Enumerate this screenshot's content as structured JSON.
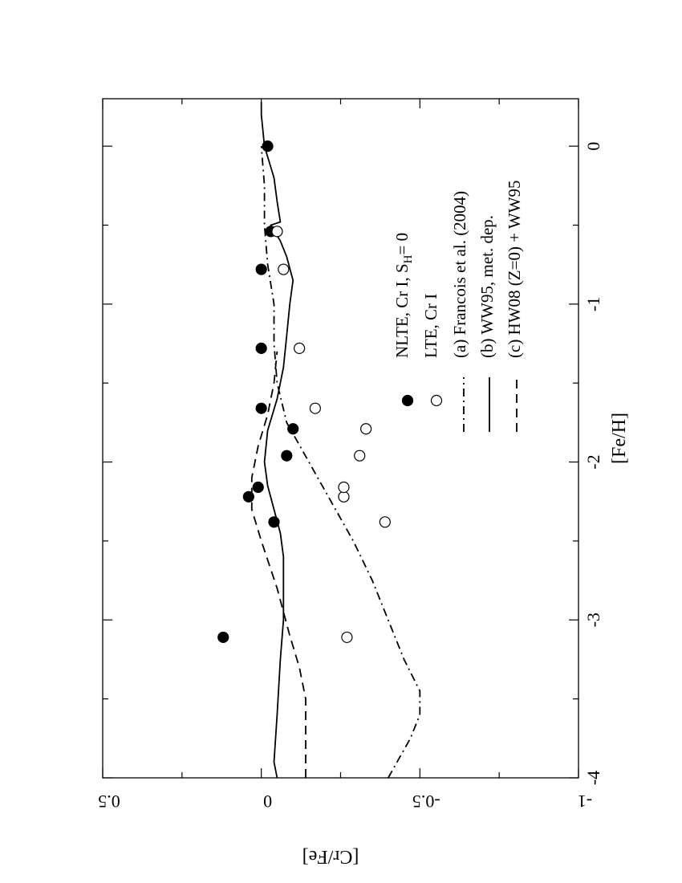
{
  "chart_data": {
    "type": "scatter",
    "orientation": "rotated-90-counterclockwise",
    "xlabel": "[Fe/H]",
    "ylabel": "[Cr/Fe]",
    "xlim": [
      -4,
      0.3
    ],
    "ylim": [
      -1,
      0.5
    ],
    "x_ticks": [
      {
        "value": -4,
        "label": "-4"
      },
      {
        "value": -3,
        "label": "-3"
      },
      {
        "value": -2,
        "label": "-2"
      },
      {
        "value": -1,
        "label": "-1"
      },
      {
        "value": 0,
        "label": "0"
      }
    ],
    "y_ticks": [
      {
        "value": 0.5,
        "label": "0.5"
      },
      {
        "value": 0,
        "label": "0"
      },
      {
        "value": -0.5,
        "label": "-0.5"
      },
      {
        "value": -1,
        "label": "-1"
      }
    ],
    "legend": {
      "placement": "lower-right",
      "entries": [
        {
          "text": "NLTE, Cr I, S",
          "sub": "H",
          "suffix": "= 0",
          "marker": "filled-circle"
        },
        {
          "text": "LTE, Cr I",
          "marker": "open-circle"
        },
        {
          "text": "(a) Francois et al. (2004)",
          "marker": "dash-dot-line"
        },
        {
          "text": "(b) WW95, met. dep.",
          "marker": "solid-line"
        },
        {
          "text": "(c) HW08 (Z=0) + WW95",
          "marker": "dashed-line"
        }
      ]
    },
    "series": [
      {
        "kind": "points",
        "style": "filled",
        "points": [
          {
            "x": -3.11,
            "y": 0.12
          },
          {
            "x": -2.38,
            "y": -0.04
          },
          {
            "x": -2.22,
            "y": 0.04
          },
          {
            "x": -2.16,
            "y": 0.01
          },
          {
            "x": -1.96,
            "y": -0.08
          },
          {
            "x": -1.79,
            "y": -0.1
          },
          {
            "x": -1.66,
            "y": 0.0
          },
          {
            "x": -1.28,
            "y": 0.0
          },
          {
            "x": -0.78,
            "y": 0.0
          },
          {
            "x": -0.54,
            "y": -0.03
          },
          {
            "x": 0.0,
            "y": -0.02
          }
        ]
      },
      {
        "kind": "points",
        "style": "open",
        "points": [
          {
            "x": -3.11,
            "y": -0.27
          },
          {
            "x": -2.38,
            "y": -0.39
          },
          {
            "x": -2.22,
            "y": -0.26
          },
          {
            "x": -2.16,
            "y": -0.26
          },
          {
            "x": -1.96,
            "y": -0.31
          },
          {
            "x": -1.79,
            "y": -0.33
          },
          {
            "x": -1.66,
            "y": -0.17
          },
          {
            "x": -1.28,
            "y": -0.12
          },
          {
            "x": -0.78,
            "y": -0.07
          },
          {
            "x": -0.54,
            "y": -0.05
          }
        ]
      },
      {
        "kind": "line",
        "style": "dashdot",
        "points": [
          {
            "x": -4.0,
            "y": -0.4
          },
          {
            "x": -3.75,
            "y": -0.47
          },
          {
            "x": -3.6,
            "y": -0.5
          },
          {
            "x": -3.45,
            "y": -0.5
          },
          {
            "x": -3.25,
            "y": -0.45
          },
          {
            "x": -3.0,
            "y": -0.4
          },
          {
            "x": -2.75,
            "y": -0.35
          },
          {
            "x": -2.5,
            "y": -0.29
          },
          {
            "x": -2.25,
            "y": -0.22
          },
          {
            "x": -2.0,
            "y": -0.15
          },
          {
            "x": -1.75,
            "y": -0.08
          },
          {
            "x": -1.5,
            "y": -0.05
          },
          {
            "x": -1.25,
            "y": -0.04
          },
          {
            "x": -1.0,
            "y": -0.04
          },
          {
            "x": -0.75,
            "y": -0.02
          },
          {
            "x": -0.5,
            "y": -0.01
          },
          {
            "x": -0.25,
            "y": -0.01
          },
          {
            "x": 0.0,
            "y": 0.0
          }
        ]
      },
      {
        "kind": "line",
        "style": "solid",
        "points": [
          {
            "x": -4.0,
            "y": -0.05
          },
          {
            "x": -3.9,
            "y": -0.04
          },
          {
            "x": -3.6,
            "y": -0.05
          },
          {
            "x": -3.25,
            "y": -0.06
          },
          {
            "x": -3.0,
            "y": -0.07
          },
          {
            "x": -2.75,
            "y": -0.07
          },
          {
            "x": -2.6,
            "y": -0.07
          },
          {
            "x": -2.45,
            "y": -0.06
          },
          {
            "x": -2.3,
            "y": -0.04
          },
          {
            "x": -2.15,
            "y": -0.02
          },
          {
            "x": -2.0,
            "y": -0.01
          },
          {
            "x": -1.8,
            "y": -0.02
          },
          {
            "x": -1.6,
            "y": -0.05
          },
          {
            "x": -1.4,
            "y": -0.07
          },
          {
            "x": -1.2,
            "y": -0.08
          },
          {
            "x": -1.0,
            "y": -0.09
          },
          {
            "x": -0.85,
            "y": -0.1
          },
          {
            "x": -0.7,
            "y": -0.08
          },
          {
            "x": -0.6,
            "y": -0.06
          },
          {
            "x": -0.5,
            "y": -0.03
          },
          {
            "x": -0.48,
            "y": -0.06
          },
          {
            "x": -0.35,
            "y": -0.05
          },
          {
            "x": -0.2,
            "y": -0.04
          },
          {
            "x": 0.0,
            "y": -0.01
          },
          {
            "x": 0.2,
            "y": 0.0
          },
          {
            "x": 0.28,
            "y": 0.0
          }
        ]
      },
      {
        "kind": "line",
        "style": "dashed",
        "points": [
          {
            "x": -4.0,
            "y": -0.14
          },
          {
            "x": -3.5,
            "y": -0.14
          },
          {
            "x": -3.3,
            "y": -0.12
          },
          {
            "x": -3.1,
            "y": -0.09
          },
          {
            "x": -2.8,
            "y": -0.05
          },
          {
            "x": -2.5,
            "y": 0.0
          },
          {
            "x": -2.3,
            "y": 0.03
          },
          {
            "x": -2.1,
            "y": 0.03
          },
          {
            "x": -1.9,
            "y": 0.01
          },
          {
            "x": -1.7,
            "y": -0.02
          },
          {
            "x": -1.5,
            "y": -0.04
          },
          {
            "x": -1.3,
            "y": -0.05
          }
        ]
      }
    ]
  }
}
